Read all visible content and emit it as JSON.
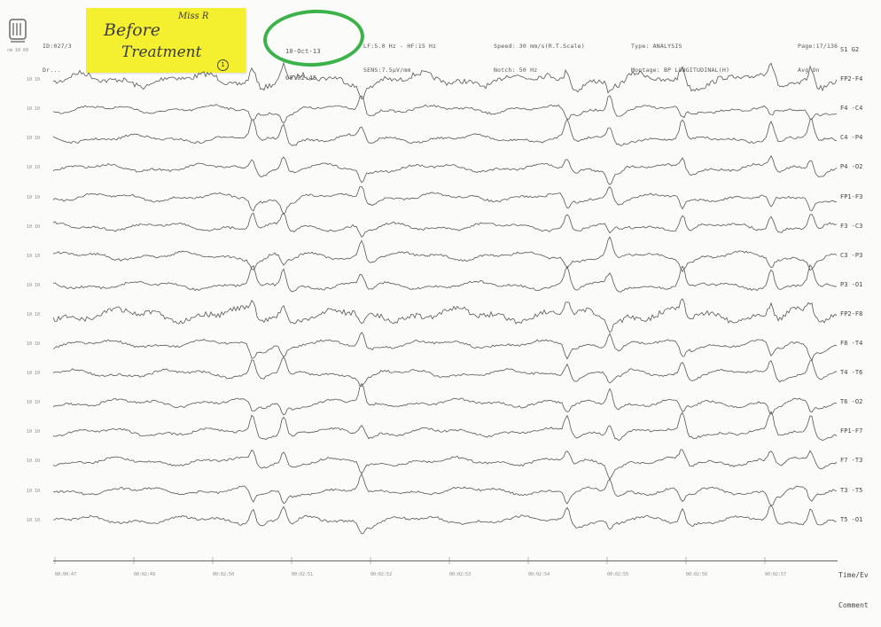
{
  "header": {
    "id_lines": [
      "ID:027/3",
      "Dr..."
    ],
    "scale_corner": "cm 10 60",
    "date": "10-Oct-13",
    "time": "00:02:45",
    "filter_lines": [
      "LF:5.0 Hz - HF:15 Hz",
      "SENS:7.5µV/mm"
    ],
    "speed_lines": [
      "Speed: 30 mm/s(R.T.Scale)",
      "Notch: 50 Hz"
    ],
    "type_lines": [
      "Type: ANALYSIS",
      "Montage: BP LONGITUDINAL(H)"
    ],
    "page_lines": [
      "Page:17/136",
      "Avg On"
    ]
  },
  "note": {
    "line1": "Before",
    "line2": "Miss R",
    "line3": "Treatment",
    "badge": "1",
    "color": "#f5f02f"
  },
  "circle_color": "#3bb34a",
  "channels": [
    {
      "label": "S1  G2",
      "scale": "cm 10 60"
    },
    {
      "label": "FP2-F4",
      "scale": "10  10"
    },
    {
      "label": "F4 -C4",
      "scale": "10  10"
    },
    {
      "label": "C4 -P4",
      "scale": "10  10"
    },
    {
      "label": "P4 -O2",
      "scale": "10  10"
    },
    {
      "label": "FP1-F3",
      "scale": "10  10"
    },
    {
      "label": "F3 -C3",
      "scale": "10  10"
    },
    {
      "label": "C3 -P3",
      "scale": "10  10"
    },
    {
      "label": "P3 -O1",
      "scale": "10  10"
    },
    {
      "label": "FP2-F8",
      "scale": "10  10"
    },
    {
      "label": "F8 -T4",
      "scale": "10  10"
    },
    {
      "label": "T4 -T6",
      "scale": "10  10"
    },
    {
      "label": "T6 -O2",
      "scale": "10  10"
    },
    {
      "label": "FP1-F7",
      "scale": "10  10"
    },
    {
      "label": "F7 -T3",
      "scale": "10  10"
    },
    {
      "label": "T3 -T5",
      "scale": "10  10"
    },
    {
      "label": "T5 -O1",
      "scale": "10  10"
    }
  ],
  "time_marks": [
    "00:00:47",
    "00:02:49",
    "00:02:50",
    "00:02:51",
    "00:02:52",
    "00:02:53",
    "00:02:54",
    "00:02:55",
    "00:02:56",
    "00:02:57"
  ],
  "footer": {
    "time_label": "Time/Ev",
    "comment_label": "Comment"
  }
}
